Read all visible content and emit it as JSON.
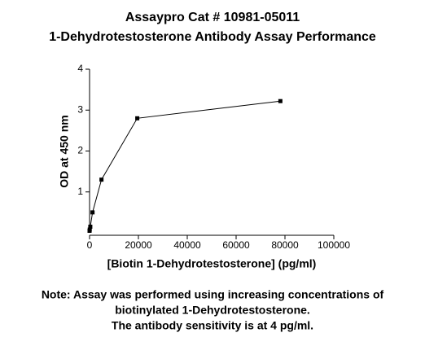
{
  "chart_data": {
    "type": "line",
    "title": [
      "Assaypro Cat # 10981-05011",
      "1-Dehydrotestosterone Antibody Assay Performance"
    ],
    "x_label": "[Biotin 1-Dehydrotestosterone] (pg/ml)",
    "y_label": "OD at 450 nm",
    "note": [
      "Note: Assay was performed using increasing concentrations of",
      "biotinylated 1-Dehydrotestosterone.",
      "The antibody sensitivity is at 4 pg/ml."
    ],
    "x": [
      0,
      76,
      305,
      1221,
      4883,
      19531,
      78125
    ],
    "series": [
      {
        "color": "#000000",
        "values": [
          0.05,
          0.08,
          0.15,
          0.5,
          1.3,
          2.8,
          3.22
        ]
      }
    ],
    "xlim": [
      0,
      100000
    ],
    "xticks": [
      0,
      20000,
      40000,
      60000,
      80000,
      100000
    ],
    "ylim": [
      0,
      4
    ],
    "yticks": [
      1,
      2,
      3,
      4
    ]
  }
}
